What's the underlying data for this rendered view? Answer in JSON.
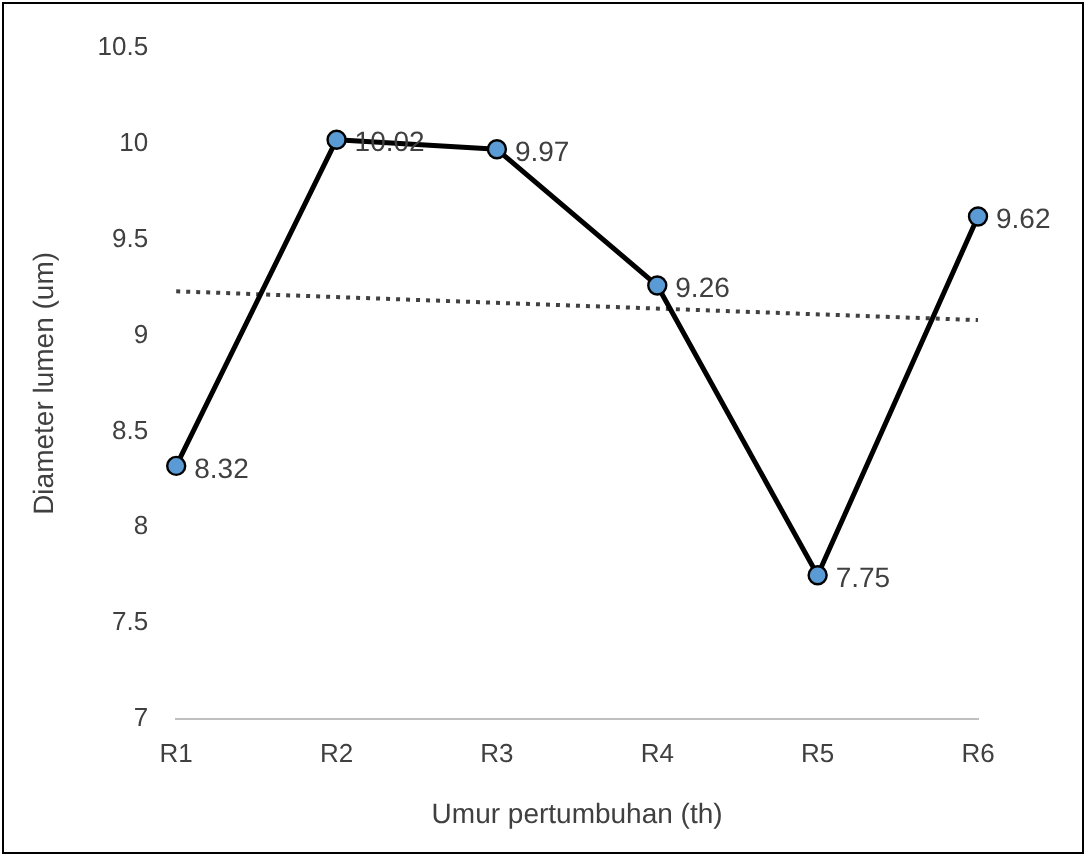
{
  "chart_data": {
    "type": "line",
    "xlabel": "Umur pertumbuhan (th)",
    "ylabel": "Diameter lumen (um)",
    "categories": [
      "R1",
      "R2",
      "R3",
      "R4",
      "R5",
      "R6"
    ],
    "series": [
      {
        "color": "#000000",
        "values": [
          8.32,
          10.02,
          9.97,
          9.26,
          7.75,
          9.62
        ],
        "marker": "circle",
        "line_style": "solid",
        "data_labels": true
      },
      {
        "color": "#404040",
        "x": [
          "R1",
          "R6"
        ],
        "values": [
          9.23,
          9.08
        ],
        "marker": "none",
        "line_style": "dotted"
      }
    ],
    "ylim": [
      7,
      10.5
    ],
    "yticks": [
      7,
      7.5,
      8,
      8.5,
      9,
      9.5,
      10,
      10.5
    ],
    "grid": false,
    "legend": false
  }
}
